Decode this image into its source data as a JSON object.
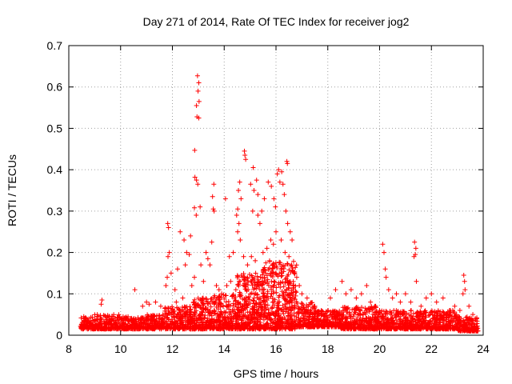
{
  "chart_data": {
    "type": "scatter",
    "title": "Day 271 of 2014, Rate Of TEC Index for receiver jog2",
    "xlabel": "GPS time / hours",
    "ylabel": "ROTI / TECUs",
    "xlim": [
      8,
      24
    ],
    "ylim": [
      0,
      0.7
    ],
    "xticks": [
      8,
      10,
      12,
      14,
      16,
      18,
      20,
      22,
      24
    ],
    "yticks": [
      0,
      0.1,
      0.2,
      0.3,
      0.4,
      0.5,
      0.6,
      0.7
    ],
    "grid": true,
    "marker": "plus",
    "color": "#ff0000",
    "series": [
      {
        "name": "jog2",
        "points": [
          [
            12.97,
            0.627
          ],
          [
            13.02,
            0.61
          ],
          [
            12.99,
            0.59
          ],
          [
            13.03,
            0.565
          ],
          [
            12.93,
            0.555
          ],
          [
            12.95,
            0.528
          ],
          [
            13.02,
            0.525
          ],
          [
            12.86,
            0.447
          ],
          [
            12.87,
            0.382
          ],
          [
            12.93,
            0.375
          ],
          [
            12.98,
            0.365
          ],
          [
            13.07,
            0.31
          ],
          [
            12.85,
            0.308
          ],
          [
            12.92,
            0.29
          ],
          [
            13.6,
            0.365
          ],
          [
            13.55,
            0.335
          ],
          [
            13.58,
            0.305
          ],
          [
            13.61,
            0.3
          ],
          [
            13.52,
            0.225
          ],
          [
            14.05,
            0.33
          ],
          [
            14.78,
            0.445
          ],
          [
            14.8,
            0.435
          ],
          [
            14.83,
            0.425
          ],
          [
            14.6,
            0.37
          ],
          [
            14.55,
            0.35
          ],
          [
            14.65,
            0.33
          ],
          [
            14.52,
            0.305
          ],
          [
            14.48,
            0.29
          ],
          [
            14.57,
            0.27
          ],
          [
            14.52,
            0.25
          ],
          [
            14.62,
            0.23
          ],
          [
            15.12,
            0.405
          ],
          [
            15.02,
            0.365
          ],
          [
            15.15,
            0.35
          ],
          [
            15.25,
            0.375
          ],
          [
            15.3,
            0.34
          ],
          [
            15.1,
            0.3
          ],
          [
            15.3,
            0.29
          ],
          [
            15.38,
            0.27
          ],
          [
            15.45,
            0.3
          ],
          [
            15.55,
            0.33
          ],
          [
            15.7,
            0.37
          ],
          [
            15.82,
            0.36
          ],
          [
            15.92,
            0.33
          ],
          [
            15.98,
            0.31
          ],
          [
            16.05,
            0.39
          ],
          [
            16.1,
            0.4
          ],
          [
            16.15,
            0.37
          ],
          [
            16.22,
            0.395
          ],
          [
            16.27,
            0.365
          ],
          [
            16.32,
            0.34
          ],
          [
            16.42,
            0.42
          ],
          [
            16.44,
            0.415
          ],
          [
            16.38,
            0.3
          ],
          [
            16.45,
            0.27
          ],
          [
            16.55,
            0.25
          ],
          [
            16.62,
            0.23
          ],
          [
            11.82,
            0.27
          ],
          [
            11.85,
            0.26
          ],
          [
            11.88,
            0.2
          ],
          [
            11.83,
            0.19
          ],
          [
            12.3,
            0.25
          ],
          [
            12.45,
            0.23
          ],
          [
            12.7,
            0.24
          ],
          [
            12.55,
            0.2
          ],
          [
            12.65,
            0.195
          ],
          [
            13.3,
            0.2
          ],
          [
            13.37,
            0.185
          ],
          [
            13.45,
            0.17
          ],
          [
            13.1,
            0.17
          ],
          [
            12.5,
            0.17
          ],
          [
            12.2,
            0.16
          ],
          [
            11.95,
            0.15
          ],
          [
            14.2,
            0.19
          ],
          [
            14.35,
            0.2
          ],
          [
            14.75,
            0.19
          ],
          [
            14.9,
            0.17
          ],
          [
            15.05,
            0.19
          ],
          [
            15.2,
            0.18
          ],
          [
            15.5,
            0.2
          ],
          [
            15.65,
            0.21
          ],
          [
            15.8,
            0.23
          ],
          [
            15.9,
            0.22
          ],
          [
            16.0,
            0.25
          ],
          [
            16.2,
            0.23
          ],
          [
            16.35,
            0.2
          ],
          [
            16.5,
            0.19
          ],
          [
            16.6,
            0.17
          ],
          [
            16.7,
            0.15
          ],
          [
            16.8,
            0.14
          ],
          [
            16.9,
            0.12
          ],
          [
            17.0,
            0.1
          ],
          [
            20.12,
            0.22
          ],
          [
            20.17,
            0.2
          ],
          [
            20.22,
            0.16
          ],
          [
            20.25,
            0.14
          ],
          [
            20.35,
            0.11
          ],
          [
            21.35,
            0.225
          ],
          [
            21.4,
            0.21
          ],
          [
            21.38,
            0.195
          ],
          [
            21.33,
            0.19
          ],
          [
            21.42,
            0.13
          ],
          [
            23.25,
            0.145
          ],
          [
            23.28,
            0.13
          ],
          [
            23.3,
            0.11
          ],
          [
            23.22,
            0.1
          ],
          [
            10.55,
            0.11
          ],
          [
            9.28,
            0.085
          ],
          [
            9.25,
            0.075
          ],
          [
            10.85,
            0.07
          ],
          [
            11.0,
            0.08
          ],
          [
            11.1,
            0.075
          ],
          [
            11.35,
            0.08
          ],
          [
            11.55,
            0.07
          ],
          [
            11.75,
            0.12
          ],
          [
            11.8,
            0.14
          ],
          [
            12.1,
            0.11
          ],
          [
            12.15,
            0.08
          ],
          [
            12.4,
            0.09
          ],
          [
            12.75,
            0.12
          ],
          [
            12.85,
            0.14
          ],
          [
            13.2,
            0.13
          ],
          [
            13.7,
            0.12
          ],
          [
            13.8,
            0.11
          ],
          [
            13.9,
            0.1
          ],
          [
            14.1,
            0.12
          ],
          [
            14.25,
            0.13
          ],
          [
            14.45,
            0.11
          ],
          [
            14.7,
            0.14
          ],
          [
            15.4,
            0.14
          ],
          [
            15.6,
            0.15
          ],
          [
            17.2,
            0.09
          ],
          [
            17.5,
            0.07
          ],
          [
            17.75,
            0.06
          ],
          [
            18.1,
            0.09
          ],
          [
            18.3,
            0.11
          ],
          [
            18.55,
            0.13
          ],
          [
            18.7,
            0.1
          ],
          [
            18.9,
            0.11
          ],
          [
            19.1,
            0.09
          ],
          [
            19.3,
            0.1
          ],
          [
            19.5,
            0.12
          ],
          [
            19.65,
            0.08
          ],
          [
            19.85,
            0.07
          ],
          [
            20.0,
            0.06
          ],
          [
            20.5,
            0.09
          ],
          [
            20.65,
            0.1
          ],
          [
            20.8,
            0.08
          ],
          [
            21.0,
            0.1
          ],
          [
            21.2,
            0.08
          ],
          [
            21.6,
            0.07
          ],
          [
            21.8,
            0.09
          ],
          [
            22.0,
            0.1
          ],
          [
            22.2,
            0.08
          ],
          [
            22.45,
            0.09
          ],
          [
            22.7,
            0.06
          ],
          [
            22.9,
            0.07
          ],
          [
            23.1,
            0.06
          ],
          [
            23.45,
            0.07
          ],
          [
            23.6,
            0.05
          ],
          [
            23.75,
            0.04
          ]
        ],
        "bands": [
          [
            8.45,
            9.0,
            0.015,
            0.045
          ],
          [
            9.0,
            10.0,
            0.015,
            0.05
          ],
          [
            10.0,
            11.0,
            0.015,
            0.045
          ],
          [
            11.0,
            11.7,
            0.015,
            0.05
          ],
          [
            11.7,
            12.8,
            0.015,
            0.07
          ],
          [
            12.8,
            13.6,
            0.015,
            0.09
          ],
          [
            13.6,
            14.5,
            0.015,
            0.1
          ],
          [
            14.5,
            15.5,
            0.015,
            0.15
          ],
          [
            15.5,
            16.8,
            0.015,
            0.18
          ],
          [
            16.8,
            17.5,
            0.02,
            0.08
          ],
          [
            17.5,
            18.5,
            0.02,
            0.06
          ],
          [
            18.5,
            20.0,
            0.015,
            0.07
          ],
          [
            20.0,
            21.5,
            0.015,
            0.06
          ],
          [
            21.5,
            23.0,
            0.015,
            0.06
          ],
          [
            23.0,
            23.8,
            0.01,
            0.045
          ]
        ]
      }
    ]
  }
}
